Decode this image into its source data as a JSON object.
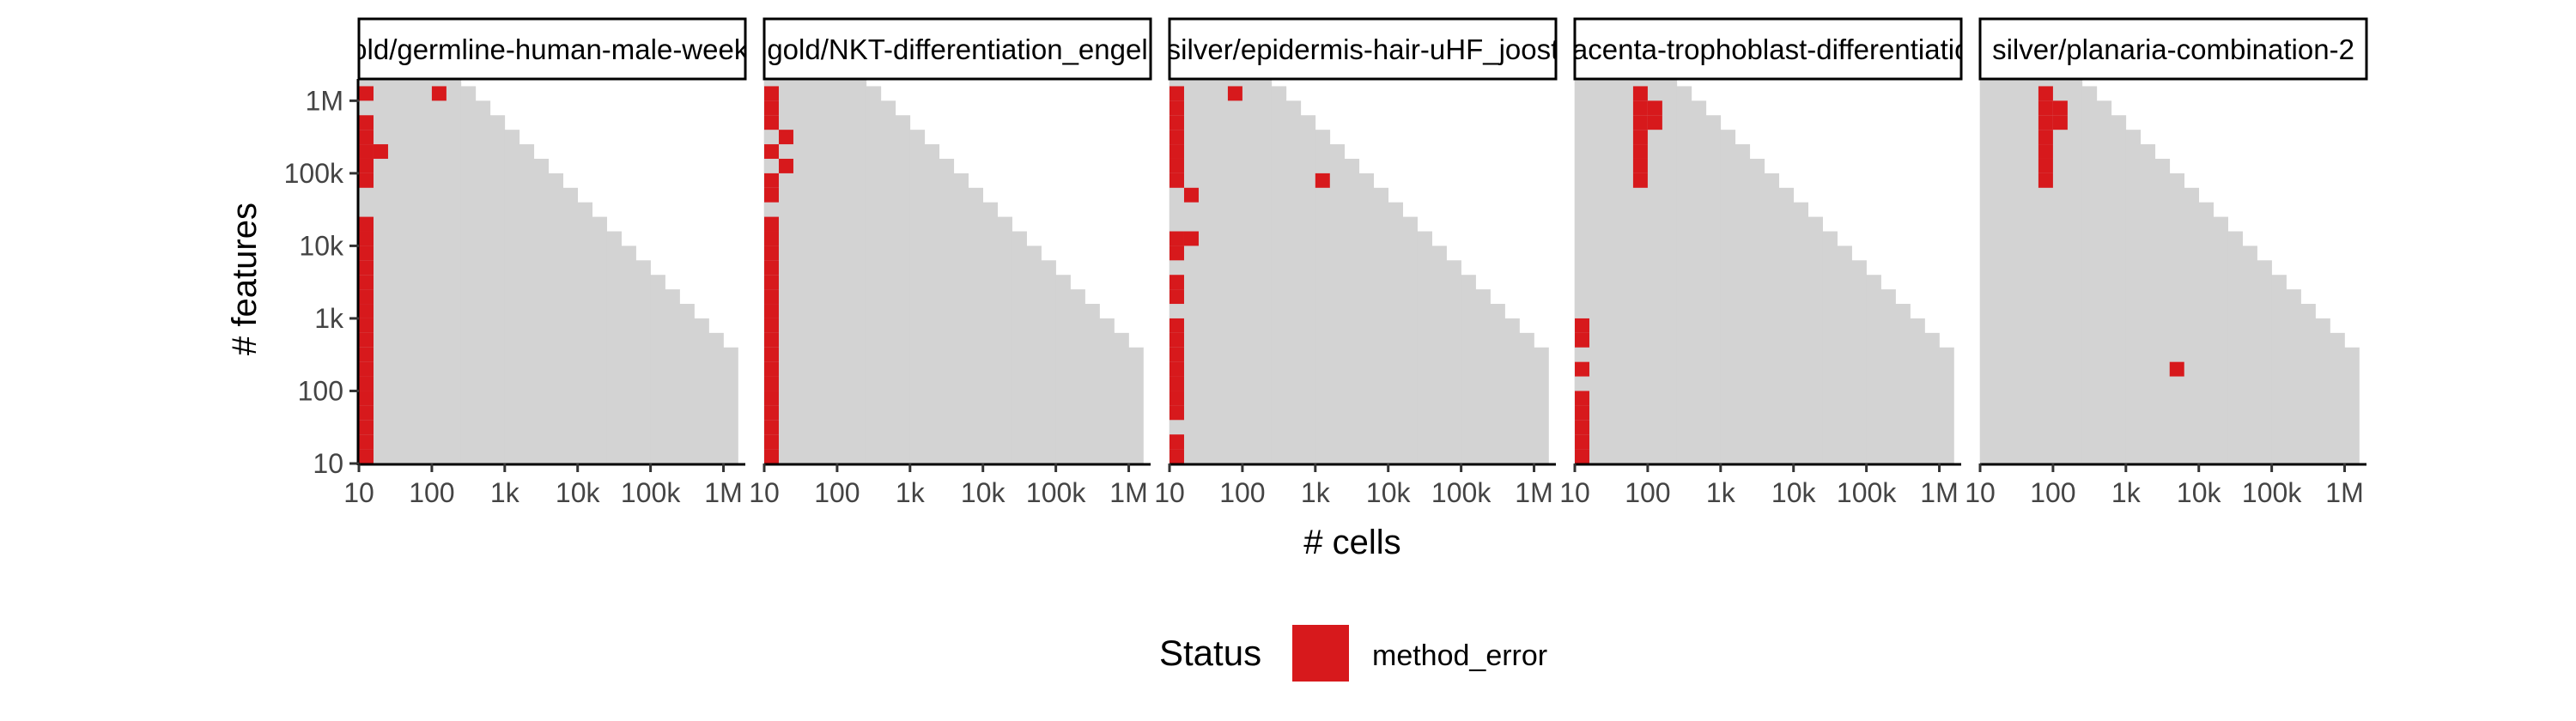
{
  "chart_data": {
    "type": "heatmap",
    "xlabel": "# cells",
    "ylabel": "# features",
    "x_scale": "log10",
    "y_scale": "log10",
    "x_ticks": [
      "10",
      "100",
      "1k",
      "10k",
      "100k",
      "1M"
    ],
    "y_ticks": [
      "10",
      "100",
      "1k",
      "10k",
      "100k",
      "1M"
    ],
    "grid_log_range": {
      "min": 1,
      "max": 6.3,
      "step": 0.2
    },
    "background_color": "#d3d3d3",
    "legend": {
      "title": "Status",
      "position": "bottom",
      "entries": [
        {
          "label": "method_error",
          "color": "#d7191c"
        }
      ]
    },
    "panels": [
      {
        "title": "gold/germline-human-male-weekly",
        "method_error_cells": [
          [
            1.0,
            1.0
          ],
          [
            1.0,
            1.2
          ],
          [
            1.0,
            1.4
          ],
          [
            1.0,
            1.6
          ],
          [
            1.0,
            1.8
          ],
          [
            1.0,
            2.0
          ],
          [
            1.0,
            2.2
          ],
          [
            1.0,
            2.4
          ],
          [
            1.0,
            2.6
          ],
          [
            1.0,
            2.8
          ],
          [
            1.0,
            3.0
          ],
          [
            1.0,
            3.2
          ],
          [
            1.0,
            3.4
          ],
          [
            1.0,
            3.6
          ],
          [
            1.0,
            3.8
          ],
          [
            1.0,
            4.0
          ],
          [
            1.0,
            4.2
          ],
          [
            1.0,
            4.8
          ],
          [
            1.0,
            5.0
          ],
          [
            1.0,
            5.2
          ],
          [
            1.0,
            5.4
          ],
          [
            1.0,
            5.6
          ],
          [
            1.0,
            6.0
          ],
          [
            1.2,
            5.2
          ],
          [
            2.0,
            6.0
          ]
        ]
      },
      {
        "title": "gold/NKT-differentiation_engel",
        "method_error_cells": [
          [
            1.0,
            1.0
          ],
          [
            1.0,
            1.2
          ],
          [
            1.0,
            1.4
          ],
          [
            1.0,
            1.6
          ],
          [
            1.0,
            1.8
          ],
          [
            1.0,
            2.0
          ],
          [
            1.0,
            2.2
          ],
          [
            1.0,
            2.4
          ],
          [
            1.0,
            2.6
          ],
          [
            1.0,
            2.8
          ],
          [
            1.0,
            3.0
          ],
          [
            1.0,
            3.2
          ],
          [
            1.0,
            3.4
          ],
          [
            1.0,
            3.6
          ],
          [
            1.0,
            3.8
          ],
          [
            1.0,
            4.0
          ],
          [
            1.0,
            4.2
          ],
          [
            1.0,
            4.6
          ],
          [
            1.0,
            4.8
          ],
          [
            1.0,
            5.2
          ],
          [
            1.0,
            5.6
          ],
          [
            1.0,
            5.8
          ],
          [
            1.0,
            6.0
          ],
          [
            1.2,
            5.0
          ],
          [
            1.2,
            5.4
          ]
        ]
      },
      {
        "title": "silver/epidermis-hair-uHF_joost",
        "method_error_cells": [
          [
            1.0,
            1.0
          ],
          [
            1.0,
            1.2
          ],
          [
            1.0,
            1.6
          ],
          [
            1.0,
            1.8
          ],
          [
            1.0,
            2.0
          ],
          [
            1.0,
            2.2
          ],
          [
            1.0,
            2.4
          ],
          [
            1.0,
            2.6
          ],
          [
            1.0,
            2.8
          ],
          [
            1.0,
            3.2
          ],
          [
            1.0,
            3.4
          ],
          [
            1.0,
            3.8
          ],
          [
            1.0,
            4.0
          ],
          [
            1.0,
            4.8
          ],
          [
            1.0,
            5.0
          ],
          [
            1.0,
            5.2
          ],
          [
            1.0,
            5.4
          ],
          [
            1.0,
            5.6
          ],
          [
            1.0,
            5.8
          ],
          [
            1.0,
            6.0
          ],
          [
            1.2,
            4.0
          ],
          [
            1.2,
            4.6
          ],
          [
            1.8,
            6.0
          ],
          [
            3.0,
            4.8
          ]
        ]
      },
      {
        "title": "placenta-trophoblast-differentiation",
        "method_error_cells": [
          [
            1.0,
            1.0
          ],
          [
            1.0,
            1.2
          ],
          [
            1.0,
            1.4
          ],
          [
            1.0,
            1.6
          ],
          [
            1.0,
            1.8
          ],
          [
            1.0,
            2.2
          ],
          [
            1.0,
            2.6
          ],
          [
            1.0,
            2.8
          ],
          [
            1.8,
            4.8
          ],
          [
            1.8,
            5.0
          ],
          [
            1.8,
            5.2
          ],
          [
            1.8,
            5.4
          ],
          [
            1.8,
            5.6
          ],
          [
            1.8,
            5.8
          ],
          [
            1.8,
            6.0
          ],
          [
            2.0,
            5.6
          ],
          [
            2.0,
            5.8
          ]
        ]
      },
      {
        "title": "silver/planaria-combination-2",
        "method_error_cells": [
          [
            1.8,
            4.8
          ],
          [
            1.8,
            5.0
          ],
          [
            1.8,
            5.2
          ],
          [
            1.8,
            5.4
          ],
          [
            1.8,
            5.6
          ],
          [
            1.8,
            5.8
          ],
          [
            1.8,
            6.0
          ],
          [
            2.0,
            5.6
          ],
          [
            2.0,
            5.8
          ],
          [
            3.6,
            2.2
          ]
        ]
      }
    ]
  }
}
